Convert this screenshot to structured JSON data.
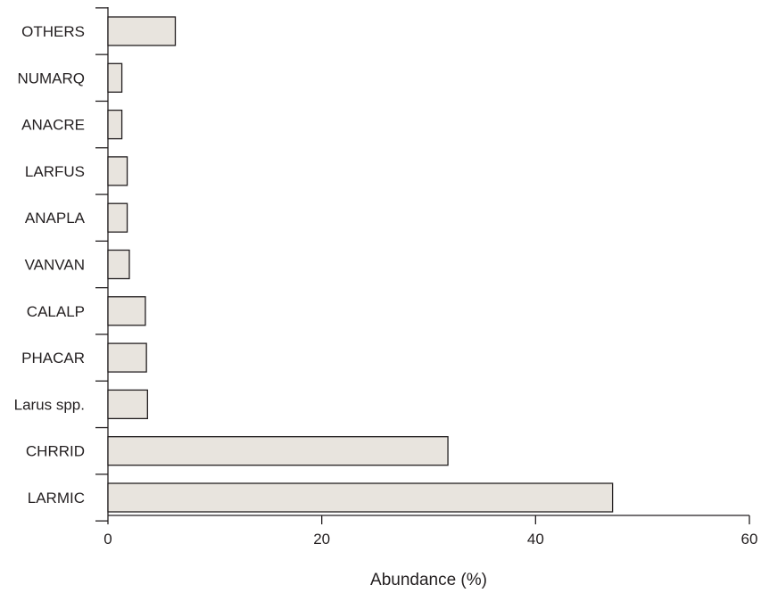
{
  "chart_data": {
    "type": "bar",
    "orientation": "horizontal",
    "categories": [
      "OTHERS",
      "NUMARQ",
      "ANACRE",
      "LARFUS",
      "ANAPLA",
      "VANVAN",
      "CALALP",
      "PHACAR",
      "Larus spp.",
      "CHRRID",
      "LARMIC"
    ],
    "values": [
      6.3,
      1.3,
      1.3,
      1.8,
      1.8,
      2.0,
      3.5,
      3.6,
      3.7,
      31.8,
      47.2
    ],
    "xlabel": "Abundance (%)",
    "ylabel": "",
    "title": "",
    "xlim": [
      0,
      60
    ],
    "xticks": [
      0,
      20,
      40,
      60
    ],
    "grid": false,
    "colors": {
      "bar_fill": "#e8e4de",
      "bar_stroke": "#231f20",
      "axis": "#231f20"
    }
  }
}
